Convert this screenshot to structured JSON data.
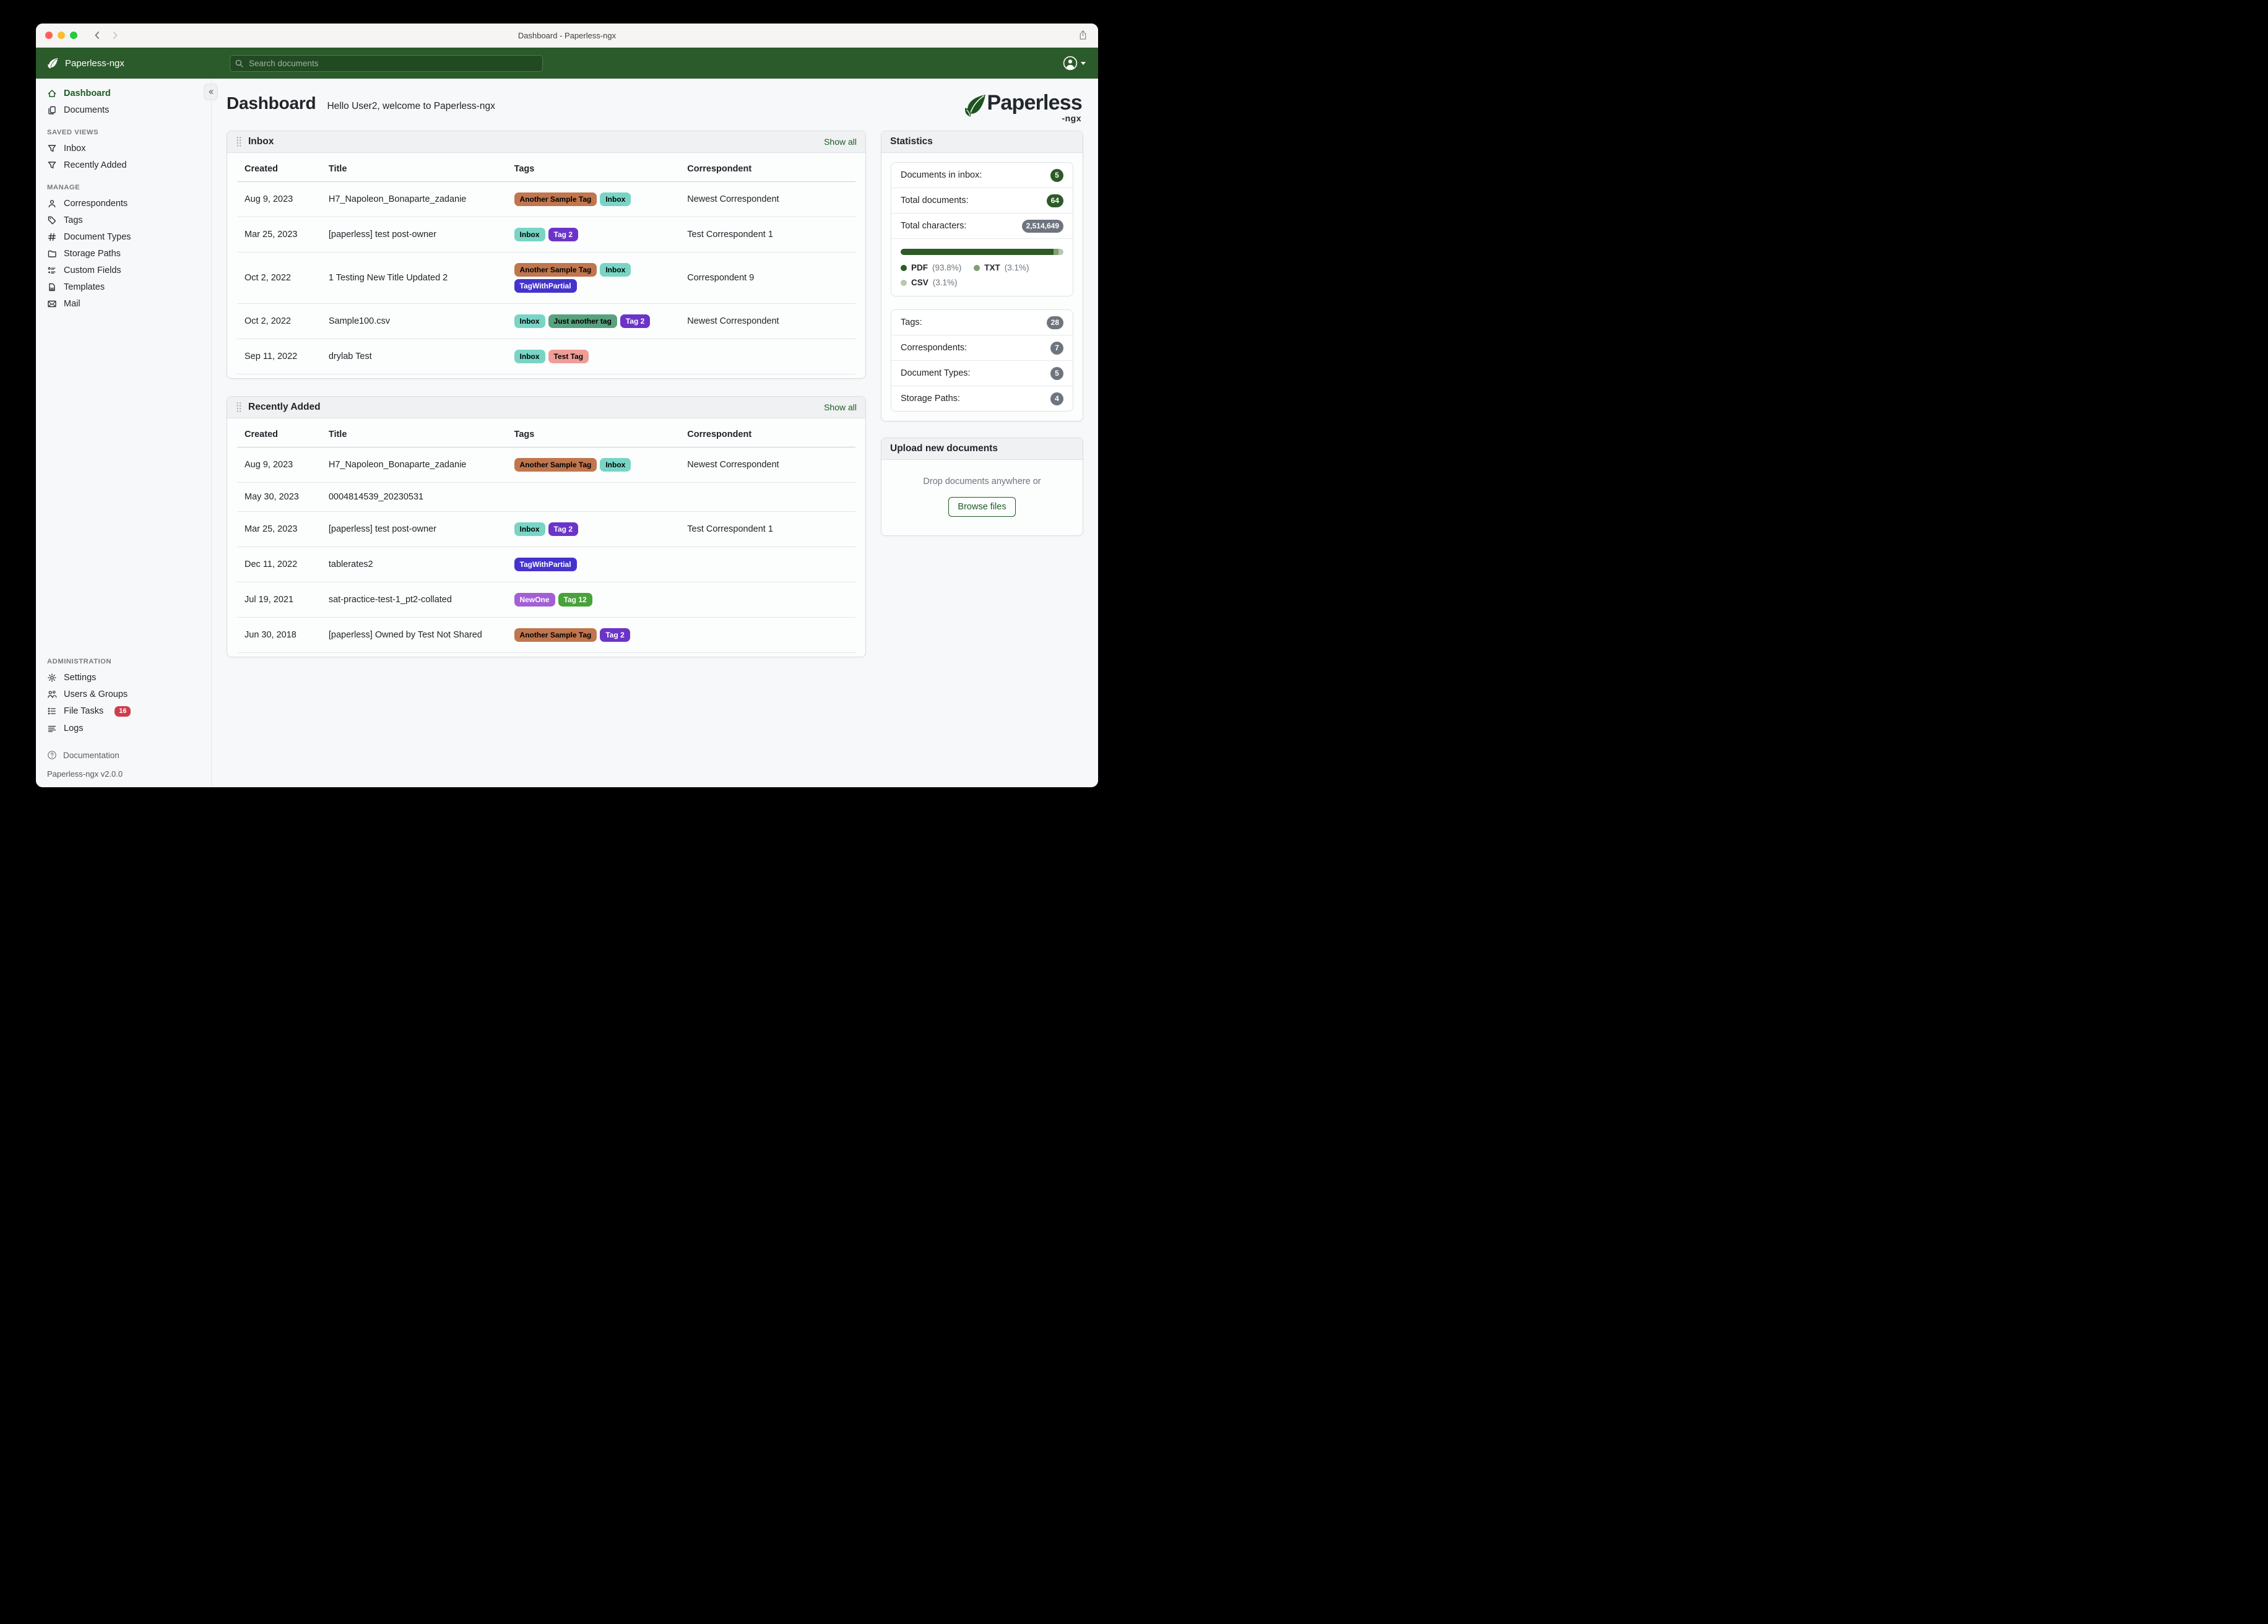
{
  "window": {
    "title": "Dashboard - Paperless-ngx"
  },
  "header": {
    "brand": "Paperless-ngx",
    "search_placeholder": "Search documents"
  },
  "sidebar": {
    "primary": [
      {
        "label": "Dashboard",
        "icon": "home",
        "active": true
      },
      {
        "label": "Documents",
        "icon": "copy",
        "active": false
      }
    ],
    "sections": [
      {
        "heading": "SAVED VIEWS",
        "items": [
          {
            "label": "Inbox",
            "icon": "funnel"
          },
          {
            "label": "Recently Added",
            "icon": "funnel"
          }
        ]
      },
      {
        "heading": "MANAGE",
        "items": [
          {
            "label": "Correspondents",
            "icon": "person"
          },
          {
            "label": "Tags",
            "icon": "tag"
          },
          {
            "label": "Document Types",
            "icon": "hash"
          },
          {
            "label": "Storage Paths",
            "icon": "folder"
          },
          {
            "label": "Custom Fields",
            "icon": "fields"
          },
          {
            "label": "Templates",
            "icon": "file"
          },
          {
            "label": "Mail",
            "icon": "mail"
          }
        ]
      }
    ],
    "admin": {
      "heading": "ADMINISTRATION",
      "items": [
        {
          "label": "Settings",
          "icon": "gear"
        },
        {
          "label": "Users & Groups",
          "icon": "users"
        },
        {
          "label": "File Tasks",
          "icon": "tasks",
          "badge": "16"
        },
        {
          "label": "Logs",
          "icon": "logs"
        }
      ]
    },
    "footer": {
      "documentation": "Documentation",
      "version": "Paperless-ngx v2.0.0"
    }
  },
  "page": {
    "title": "Dashboard",
    "greeting": "Hello User2, welcome to Paperless-ngx"
  },
  "logo": {
    "text": "Paperless",
    "suffix": "-ngx"
  },
  "cards": [
    {
      "title": "Inbox",
      "show_all": "Show all",
      "columns": [
        "Created",
        "Title",
        "Tags",
        "Correspondent"
      ],
      "rows": [
        {
          "created": "Aug 9, 2023",
          "title": "H7_Napoleon_Bonaparte_zadanie",
          "tags": [
            {
              "label": "Another Sample Tag",
              "bg": "#c0764e",
              "fg": "#000000"
            },
            {
              "label": "Inbox",
              "bg": "#78d5c5",
              "fg": "#000000"
            }
          ],
          "correspondent": "Newest Correspondent"
        },
        {
          "created": "Mar 25, 2023",
          "title": "[paperless] test post-owner",
          "tags": [
            {
              "label": "Inbox",
              "bg": "#78d5c5",
              "fg": "#000000"
            },
            {
              "label": "Tag 2",
              "bg": "#6b34c9",
              "fg": "#ffffff"
            }
          ],
          "correspondent": "Test Correspondent 1"
        },
        {
          "created": "Oct 2, 2022",
          "title": "1 Testing New Title Updated 2",
          "tags": [
            {
              "label": "Another Sample Tag",
              "bg": "#c0764e",
              "fg": "#000000"
            },
            {
              "label": "Inbox",
              "bg": "#78d5c5",
              "fg": "#000000"
            },
            {
              "label": "TagWithPartial",
              "bg": "#4433cc",
              "fg": "#ffffff"
            }
          ],
          "correspondent": "Correspondent 9"
        },
        {
          "created": "Oct 2, 2022",
          "title": "Sample100.csv",
          "tags": [
            {
              "label": "Inbox",
              "bg": "#78d5c5",
              "fg": "#000000"
            },
            {
              "label": "Just another tag",
              "bg": "#58a27f",
              "fg": "#000000"
            },
            {
              "label": "Tag 2",
              "bg": "#6b34c9",
              "fg": "#ffffff"
            }
          ],
          "correspondent": "Newest Correspondent"
        },
        {
          "created": "Sep 11, 2022",
          "title": "drylab Test",
          "tags": [
            {
              "label": "Inbox",
              "bg": "#78d5c5",
              "fg": "#000000"
            },
            {
              "label": "Test Tag",
              "bg": "#ef9d97",
              "fg": "#000000"
            }
          ],
          "correspondent": ""
        }
      ]
    },
    {
      "title": "Recently Added",
      "show_all": "Show all",
      "columns": [
        "Created",
        "Title",
        "Tags",
        "Correspondent"
      ],
      "rows": [
        {
          "created": "Aug 9, 2023",
          "title": "H7_Napoleon_Bonaparte_zadanie",
          "tags": [
            {
              "label": "Another Sample Tag",
              "bg": "#c0764e",
              "fg": "#000000"
            },
            {
              "label": "Inbox",
              "bg": "#78d5c5",
              "fg": "#000000"
            }
          ],
          "correspondent": "Newest Correspondent"
        },
        {
          "created": "May 30, 2023",
          "title": "0004814539_20230531",
          "tags": [],
          "correspondent": ""
        },
        {
          "created": "Mar 25, 2023",
          "title": "[paperless] test post-owner",
          "tags": [
            {
              "label": "Inbox",
              "bg": "#78d5c5",
              "fg": "#000000"
            },
            {
              "label": "Tag 2",
              "bg": "#6b34c9",
              "fg": "#ffffff"
            }
          ],
          "correspondent": "Test Correspondent 1"
        },
        {
          "created": "Dec 11, 2022",
          "title": "tablerates2",
          "tags": [
            {
              "label": "TagWithPartial",
              "bg": "#4433cc",
              "fg": "#ffffff"
            }
          ],
          "correspondent": ""
        },
        {
          "created": "Jul 19, 2021",
          "title": "sat-practice-test-1_pt2-collated",
          "tags": [
            {
              "label": "NewOne",
              "bg": "#a35fd6",
              "fg": "#ffffff"
            },
            {
              "label": "Tag 12",
              "bg": "#47a23b",
              "fg": "#ffffff"
            }
          ],
          "correspondent": ""
        },
        {
          "created": "Jun 30, 2018",
          "title": "[paperless] Owned by Test Not Shared",
          "tags": [
            {
              "label": "Another Sample Tag",
              "bg": "#c0764e",
              "fg": "#000000"
            },
            {
              "label": "Tag 2",
              "bg": "#6b34c9",
              "fg": "#ffffff"
            }
          ],
          "correspondent": ""
        }
      ]
    }
  ],
  "statistics": {
    "title": "Statistics",
    "counts": [
      {
        "label": "Documents in inbox:",
        "value": "5",
        "color": "green"
      },
      {
        "label": "Total documents:",
        "value": "64",
        "color": "green"
      },
      {
        "label": "Total characters:",
        "value": "2,514,649",
        "color": "gray"
      }
    ],
    "file_types": [
      {
        "label": "PDF",
        "pct_label": "(93.8%)",
        "pct": 93.8,
        "color": "#2d5a27"
      },
      {
        "label": "TXT",
        "pct_label": "(3.1%)",
        "pct": 3.1,
        "color": "#7f9f74"
      },
      {
        "label": "CSV",
        "pct_label": "(3.1%)",
        "pct": 3.1,
        "color": "#b8c7b0"
      }
    ],
    "meta_counts": [
      {
        "label": "Tags:",
        "value": "28",
        "color": "gray"
      },
      {
        "label": "Correspondents:",
        "value": "7",
        "color": "gray"
      },
      {
        "label": "Document Types:",
        "value": "5",
        "color": "gray"
      },
      {
        "label": "Storage Paths:",
        "value": "4",
        "color": "gray"
      }
    ]
  },
  "upload": {
    "title": "Upload new documents",
    "drop_text": "Drop documents anywhere or",
    "browse_label": "Browse files"
  },
  "colors": {
    "accent_green": "#1d5b24",
    "header_green": "#2b5a2b",
    "badge_green": "#2d5a27",
    "badge_gray": "#6e757e",
    "danger_red": "#cf3e4e"
  }
}
